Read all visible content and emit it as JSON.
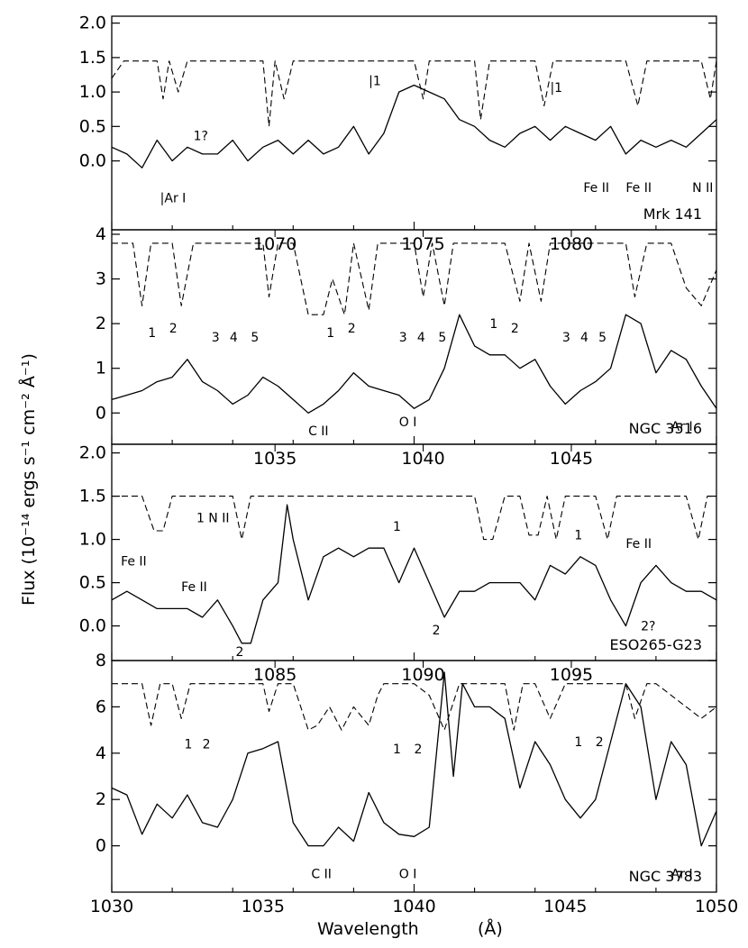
{
  "figure": {
    "xlabel": "Wavelength",
    "xlabel_unit": "(Å)",
    "ylabel": "Flux (10⁻¹⁴ ergs s⁻¹ cm⁻² Å⁻¹)"
  },
  "chart_data": [
    {
      "type": "line",
      "object": "Mrk 141",
      "xlim": [
        1030,
        1050
      ],
      "ylim": [
        -1,
        2.1
      ],
      "yticks": [
        0.0,
        0.5,
        1.0,
        1.5,
        2.0
      ],
      "ytick_labels": [
        "0.0",
        "0.5",
        "1.0",
        "1.5",
        "2.0"
      ],
      "top_ticks": [],
      "series": [
        {
          "style": "solid",
          "x": [
            1030,
            1030.5,
            1031,
            1031.5,
            1032,
            1032.5,
            1033,
            1033.5,
            1034,
            1034.5,
            1035,
            1035.5,
            1036,
            1036.5,
            1037,
            1037.5,
            1038,
            1038.5,
            1039,
            1039.5,
            1040,
            1040.5,
            1041,
            1041.5,
            1042,
            1042.5,
            1043,
            1043.5,
            1044,
            1044.5,
            1045,
            1045.5,
            1046,
            1046.5,
            1047,
            1047.5,
            1048,
            1048.5,
            1049,
            1049.5,
            1050
          ],
          "y": [
            0.2,
            0.1,
            -0.1,
            0.3,
            0.0,
            0.2,
            0.1,
            0.1,
            0.3,
            0.0,
            0.2,
            0.3,
            0.1,
            0.3,
            0.1,
            0.2,
            0.5,
            0.1,
            0.4,
            1.0,
            1.1,
            1.0,
            0.9,
            0.6,
            0.5,
            0.3,
            0.2,
            0.4,
            0.5,
            0.3,
            0.5,
            0.4,
            0.3,
            0.5,
            0.1,
            0.3,
            0.2,
            0.3,
            0.2,
            0.4,
            0.6
          ]
        },
        {
          "style": "dashed",
          "x": [
            1030,
            1030.4,
            1030.7,
            1031,
            1031.5,
            1031.7,
            1031.9,
            1032.2,
            1032.5,
            1033,
            1034,
            1035,
            1035.2,
            1035.4,
            1035.7,
            1036,
            1037,
            1038,
            1039,
            1040,
            1040.3,
            1040.5,
            1040.8,
            1041,
            1041.5,
            1042,
            1042.2,
            1042.5,
            1043,
            1043.5,
            1044,
            1044.3,
            1044.6,
            1045,
            1046,
            1047,
            1047.4,
            1047.7,
            1048,
            1049,
            1049.5,
            1049.8,
            1050
          ],
          "y": [
            1.2,
            1.45,
            1.45,
            1.45,
            1.45,
            0.9,
            1.45,
            1.0,
            1.45,
            1.45,
            1.45,
            1.45,
            0.5,
            1.45,
            0.9,
            1.45,
            1.45,
            1.45,
            1.45,
            1.45,
            0.9,
            1.45,
            1.45,
            1.45,
            1.45,
            1.45,
            0.6,
            1.45,
            1.45,
            1.45,
            1.45,
            0.8,
            1.45,
            1.45,
            1.45,
            1.45,
            0.8,
            1.45,
            1.45,
            1.45,
            1.45,
            0.9,
            1.45
          ]
        }
      ],
      "annotations": [
        {
          "text": "1?",
          "x": 1032.7,
          "y": 0.3
        },
        {
          "text": "|1",
          "x": 1038.5,
          "y": 1.1
        },
        {
          "text": "|1",
          "x": 1044.5,
          "y": 1.0
        },
        {
          "text": "|Ar I",
          "x": 1031.6,
          "y": -0.6
        },
        {
          "text": "Fe II",
          "x": 1045.6,
          "y": -0.45
        },
        {
          "text": "Fe II",
          "x": 1047.0,
          "y": -0.45
        },
        {
          "text": "N II",
          "x": 1049.2,
          "y": -0.45
        }
      ]
    },
    {
      "type": "line",
      "object": "NGC 3516",
      "xlim": [
        1030,
        1050
      ],
      "ylim": [
        -0.7,
        4.1
      ],
      "yticks": [
        0,
        1,
        2,
        3,
        4
      ],
      "ytick_labels": [
        "0",
        "1",
        "2",
        "3",
        "4"
      ],
      "top_ticks": [
        1070,
        1075,
        1080
      ],
      "top_tick_x": [
        1035.4,
        1040.3,
        1045.2
      ],
      "series": [
        {
          "style": "solid",
          "x": [
            1030,
            1030.5,
            1031,
            1031.5,
            1032,
            1032.5,
            1033,
            1033.5,
            1034,
            1034.5,
            1035,
            1035.5,
            1036,
            1036.5,
            1037,
            1037.5,
            1038,
            1038.5,
            1039,
            1039.5,
            1040,
            1040.5,
            1041,
            1041.5,
            1042,
            1042.5,
            1043,
            1043.5,
            1044,
            1044.5,
            1045,
            1045.5,
            1046,
            1046.5,
            1047,
            1047.5,
            1048,
            1048.5,
            1049,
            1049.5,
            1050
          ],
          "y": [
            0.3,
            0.4,
            0.5,
            0.7,
            0.8,
            1.2,
            0.7,
            0.5,
            0.2,
            0.4,
            0.8,
            0.6,
            0.3,
            0.0,
            0.2,
            0.5,
            0.9,
            0.6,
            0.5,
            0.4,
            0.1,
            0.3,
            1.0,
            2.2,
            1.5,
            1.3,
            1.3,
            1.0,
            1.2,
            0.6,
            0.2,
            0.5,
            0.7,
            1.0,
            2.2,
            2.0,
            0.9,
            1.4,
            1.2,
            0.6,
            0.1
          ]
        },
        {
          "style": "dashed",
          "x": [
            1030,
            1030.7,
            1031,
            1031.3,
            1031.6,
            1032,
            1032.3,
            1032.7,
            1033,
            1034,
            1035,
            1035.2,
            1035.5,
            1036,
            1036.5,
            1037,
            1037.3,
            1037.7,
            1038,
            1038.5,
            1038.8,
            1039,
            1039.5,
            1040,
            1040.3,
            1040.6,
            1041,
            1041.3,
            1041.6,
            1042,
            1042.3,
            1042.6,
            1043,
            1043.5,
            1043.8,
            1044.2,
            1044.5,
            1045,
            1046,
            1047,
            1047.3,
            1047.7,
            1048,
            1048.5,
            1049,
            1049.5,
            1050
          ],
          "y": [
            3.8,
            3.8,
            2.4,
            3.8,
            3.8,
            3.8,
            2.4,
            3.8,
            3.8,
            3.8,
            3.8,
            2.6,
            3.8,
            3.8,
            2.2,
            2.2,
            3.0,
            2.2,
            3.8,
            2.3,
            3.8,
            3.8,
            3.8,
            3.8,
            2.6,
            3.8,
            2.4,
            3.8,
            3.8,
            3.8,
            3.8,
            3.8,
            3.8,
            2.5,
            3.8,
            2.5,
            3.8,
            3.8,
            3.8,
            3.8,
            2.6,
            3.8,
            3.8,
            3.8,
            2.8,
            2.4,
            3.2
          ]
        }
      ],
      "annotations": [
        {
          "text": "1",
          "x": 1031.2,
          "y": 1.7
        },
        {
          "text": "2",
          "x": 1031.9,
          "y": 1.8
        },
        {
          "text": "3",
          "x": 1033.3,
          "y": 1.6
        },
        {
          "text": "4",
          "x": 1033.9,
          "y": 1.6
        },
        {
          "text": "5",
          "x": 1034.6,
          "y": 1.6
        },
        {
          "text": "1",
          "x": 1037.1,
          "y": 1.7
        },
        {
          "text": "2",
          "x": 1037.8,
          "y": 1.8
        },
        {
          "text": "3",
          "x": 1039.5,
          "y": 1.6
        },
        {
          "text": "4",
          "x": 1040.1,
          "y": 1.6
        },
        {
          "text": "5",
          "x": 1040.8,
          "y": 1.6
        },
        {
          "text": "1",
          "x": 1042.5,
          "y": 1.9
        },
        {
          "text": "2",
          "x": 1043.2,
          "y": 1.8
        },
        {
          "text": "3",
          "x": 1044.9,
          "y": 1.6
        },
        {
          "text": "4",
          "x": 1045.5,
          "y": 1.6
        },
        {
          "text": "5",
          "x": 1046.1,
          "y": 1.6
        },
        {
          "text": "C II",
          "x": 1036.5,
          "y": -0.5
        },
        {
          "text": "O I",
          "x": 1039.5,
          "y": -0.3
        },
        {
          "text": "Ar I",
          "x": 1048.5,
          "y": -0.4
        }
      ]
    },
    {
      "type": "line",
      "object": "ESO265-G23",
      "xlim": [
        1030,
        1050
      ],
      "ylim": [
        -0.4,
        2.1
      ],
      "yticks": [
        0.0,
        0.5,
        1.0,
        1.5,
        2.0
      ],
      "ytick_labels": [
        "0.0",
        "0.5",
        "1.0",
        "1.5",
        "2.0"
      ],
      "top_ticks": [
        1035,
        1040,
        1045
      ],
      "top_tick_x": [
        1035.4,
        1040.3,
        1045.2
      ],
      "series": [
        {
          "style": "solid",
          "x": [
            1030,
            1030.5,
            1031,
            1031.5,
            1032,
            1032.5,
            1033,
            1033.5,
            1034,
            1034.3,
            1034.6,
            1035,
            1035.5,
            1035.8,
            1036,
            1036.5,
            1037,
            1037.5,
            1038,
            1038.5,
            1039,
            1039.5,
            1040,
            1040.5,
            1041,
            1041.5,
            1042,
            1042.5,
            1043,
            1043.5,
            1044,
            1044.5,
            1045,
            1045.5,
            1046,
            1046.5,
            1047,
            1047.5,
            1048,
            1048.5,
            1049,
            1049.5,
            1050
          ],
          "y": [
            0.3,
            0.4,
            0.3,
            0.2,
            0.2,
            0.2,
            0.1,
            0.3,
            0.0,
            -0.2,
            -0.2,
            0.3,
            0.5,
            1.4,
            1.0,
            0.3,
            0.8,
            0.9,
            0.8,
            0.9,
            0.9,
            0.5,
            0.9,
            0.5,
            0.1,
            0.4,
            0.4,
            0.5,
            0.5,
            0.5,
            0.3,
            0.7,
            0.6,
            0.8,
            0.7,
            0.3,
            0.0,
            0.5,
            0.7,
            0.5,
            0.4,
            0.4,
            0.3
          ]
        },
        {
          "style": "dashed",
          "x": [
            1030,
            1030.5,
            1031,
            1031.4,
            1031.7,
            1032,
            1033,
            1034,
            1034.3,
            1034.6,
            1035,
            1036,
            1037,
            1038,
            1039,
            1040,
            1041,
            1041.5,
            1042,
            1042.3,
            1042.6,
            1043,
            1043.5,
            1043.8,
            1044.1,
            1044.4,
            1044.7,
            1045,
            1045.5,
            1046,
            1046.4,
            1046.7,
            1047,
            1048,
            1049,
            1049.4,
            1049.7,
            1050
          ],
          "y": [
            1.5,
            1.5,
            1.5,
            1.1,
            1.1,
            1.5,
            1.5,
            1.5,
            1.0,
            1.5,
            1.5,
            1.5,
            1.5,
            1.5,
            1.5,
            1.5,
            1.5,
            1.5,
            1.5,
            1.0,
            1.0,
            1.5,
            1.5,
            1.05,
            1.05,
            1.5,
            1.0,
            1.5,
            1.5,
            1.5,
            1.0,
            1.5,
            1.5,
            1.5,
            1.5,
            1.0,
            1.5,
            1.5
          ]
        }
      ],
      "annotations": [
        {
          "text": "Fe II",
          "x": 1030.3,
          "y": 0.7
        },
        {
          "text": "Fe II",
          "x": 1032.3,
          "y": 0.4
        },
        {
          "text": "1 N II",
          "x": 1032.8,
          "y": 1.2
        },
        {
          "text": "1",
          "x": 1039.3,
          "y": 1.1
        },
        {
          "text": "1",
          "x": 1045.3,
          "y": 1.0
        },
        {
          "text": "Fe II",
          "x": 1047.0,
          "y": 0.9
        },
        {
          "text": "2",
          "x": 1034.1,
          "y": -0.35
        },
        {
          "text": "2",
          "x": 1040.6,
          "y": -0.1
        },
        {
          "text": "2?",
          "x": 1047.5,
          "y": -0.05
        }
      ]
    },
    {
      "type": "line",
      "object": "NGC 3783",
      "xlim": [
        1030,
        1050
      ],
      "ylim": [
        -2,
        8
      ],
      "yticks": [
        0,
        2,
        4,
        6,
        8
      ],
      "ytick_labels": [
        "0",
        "2",
        "4",
        "6",
        "8"
      ],
      "top_ticks": [
        1085,
        1090,
        1095
      ],
      "top_tick_x": [
        1035.4,
        1040.3,
        1045.2
      ],
      "series": [
        {
          "style": "solid",
          "x": [
            1030,
            1030.5,
            1031,
            1031.5,
            1032,
            1032.5,
            1033,
            1033.5,
            1034,
            1034.5,
            1035,
            1035.5,
            1036,
            1036.5,
            1037,
            1037.5,
            1038,
            1038.5,
            1039,
            1039.5,
            1040,
            1040.5,
            1041,
            1041.3,
            1041.6,
            1042,
            1042.5,
            1043,
            1043.5,
            1044,
            1044.5,
            1045,
            1045.5,
            1046,
            1046.5,
            1047,
            1047.5,
            1048,
            1048.5,
            1049,
            1049.5,
            1050
          ],
          "y": [
            2.5,
            2.2,
            0.5,
            1.8,
            1.2,
            2.2,
            1.0,
            0.8,
            2.0,
            4.0,
            4.2,
            4.5,
            1.0,
            0.0,
            0.0,
            0.8,
            0.2,
            2.3,
            1.0,
            0.5,
            0.4,
            0.8,
            7.5,
            3.0,
            7.0,
            6.0,
            6.0,
            5.5,
            2.5,
            4.5,
            3.5,
            2.0,
            1.2,
            2.0,
            4.5,
            7.0,
            6.0,
            2.0,
            4.5,
            3.5,
            0.0,
            1.5
          ]
        },
        {
          "style": "dashed",
          "x": [
            1030,
            1030.5,
            1031,
            1031.3,
            1031.6,
            1032,
            1032.3,
            1032.6,
            1033,
            1034,
            1035,
            1035.2,
            1035.5,
            1036,
            1036.5,
            1036.8,
            1037.2,
            1037.6,
            1038,
            1038.5,
            1038.8,
            1039,
            1039.5,
            1040,
            1040.5,
            1041,
            1041.5,
            1042,
            1042.5,
            1043,
            1043.3,
            1043.6,
            1044,
            1044.5,
            1045,
            1046,
            1047,
            1047.3,
            1047.7,
            1048,
            1048.5,
            1049,
            1049.5,
            1050
          ],
          "y": [
            7.0,
            7.0,
            7.0,
            5.2,
            7.0,
            7.0,
            5.5,
            7.0,
            7.0,
            7.0,
            7.0,
            5.8,
            7.0,
            7.0,
            5.0,
            5.2,
            6.0,
            5.0,
            6.0,
            5.2,
            6.5,
            7.0,
            7.0,
            7.0,
            6.5,
            5.0,
            7.0,
            7.0,
            7.0,
            7.0,
            5.0,
            7.0,
            7.0,
            5.5,
            7.0,
            7.0,
            7.0,
            5.5,
            7.0,
            7.0,
            6.5,
            6.0,
            5.5,
            6.0
          ]
        }
      ],
      "annotations": [
        {
          "text": "1",
          "x": 1032.4,
          "y": 4.2
        },
        {
          "text": "2",
          "x": 1033.0,
          "y": 4.2
        },
        {
          "text": "1",
          "x": 1039.3,
          "y": 4.0
        },
        {
          "text": "2",
          "x": 1040.0,
          "y": 4.0
        },
        {
          "text": "1",
          "x": 1045.3,
          "y": 4.3
        },
        {
          "text": "2",
          "x": 1046.0,
          "y": 4.3
        },
        {
          "text": "C II",
          "x": 1036.6,
          "y": -1.4
        },
        {
          "text": "O I",
          "x": 1039.5,
          "y": -1.4
        },
        {
          "text": "Ar I",
          "x": 1048.5,
          "y": -1.4
        }
      ]
    }
  ],
  "xaxis": {
    "ticks": [
      1030,
      1035,
      1040,
      1045,
      1050
    ],
    "tick_labels": [
      "1030",
      "1035",
      "1040",
      "1045",
      "1050"
    ]
  }
}
